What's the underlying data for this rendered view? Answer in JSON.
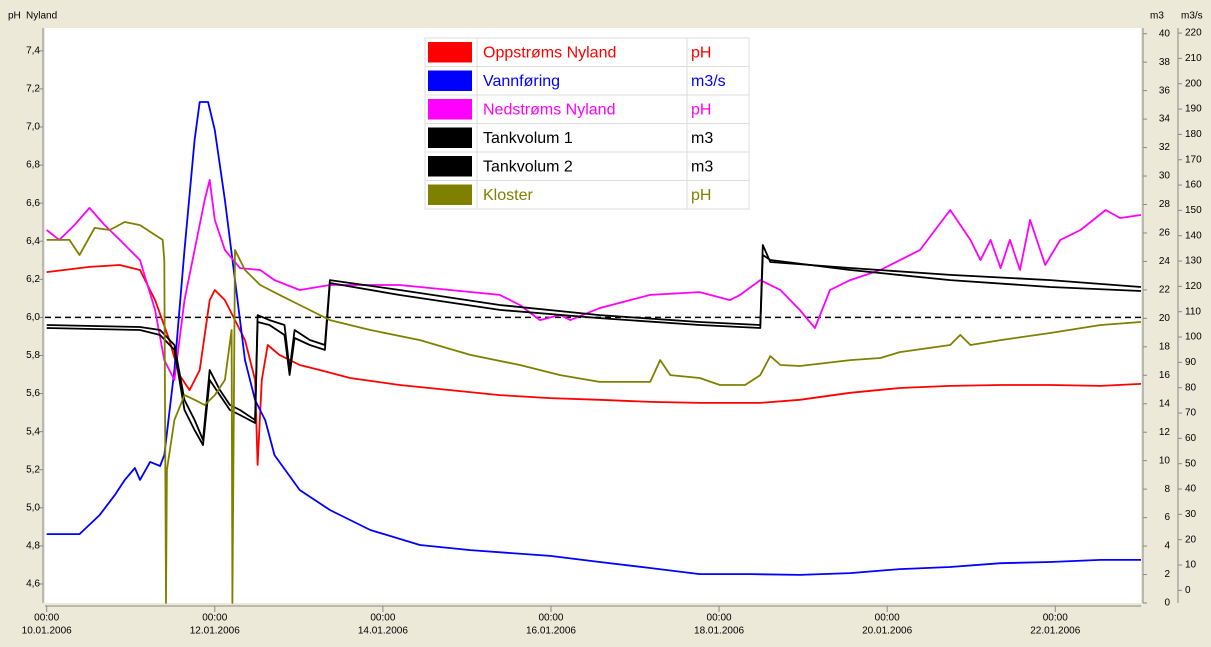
{
  "chart_data": {
    "type": "line",
    "title": "Nyland",
    "y_label": "pH",
    "y2_label": "m3",
    "y3_label": "m3/s",
    "xlim": [
      -0.02,
      13.02
    ],
    "xtick_time": "00:00",
    "xticks": [
      {
        "value": 0,
        "label": "10.01.2006"
      },
      {
        "value": 2,
        "label": "12.01.2006"
      },
      {
        "value": 4,
        "label": "14.01.2006"
      },
      {
        "value": 6,
        "label": "16.01.2006"
      },
      {
        "value": 8,
        "label": "18.01.2006"
      },
      {
        "value": 10,
        "label": "20.01.2006"
      },
      {
        "value": 12,
        "label": "22.01.2006"
      }
    ],
    "ylim": [
      4.5,
      7.52
    ],
    "yticks": [
      {
        "value": 4.6,
        "label": "4,6"
      },
      {
        "value": 4.8,
        "label": "4,8"
      },
      {
        "value": 5.0,
        "label": "5,0"
      },
      {
        "value": 5.2,
        "label": "5,2"
      },
      {
        "value": 5.4,
        "label": "5,4"
      },
      {
        "value": 5.6,
        "label": "5,6"
      },
      {
        "value": 5.8,
        "label": "5,8"
      },
      {
        "value": 6.0,
        "label": "6,0"
      },
      {
        "value": 6.2,
        "label": "6,2"
      },
      {
        "value": 6.4,
        "label": "6,4"
      },
      {
        "value": 6.6,
        "label": "6,6"
      },
      {
        "value": 6.8,
        "label": "6,8"
      },
      {
        "value": 7.0,
        "label": "7,0"
      },
      {
        "value": 7.2,
        "label": "7,2"
      },
      {
        "value": 7.4,
        "label": "7,4"
      }
    ],
    "y2lim": [
      0,
      40.4
    ],
    "y2ticks": [
      0,
      2,
      4,
      6,
      8,
      10,
      12,
      14,
      16,
      18,
      20,
      22,
      24,
      26,
      28,
      30,
      32,
      34,
      36,
      38,
      40
    ],
    "y3lim": [
      -5,
      222
    ],
    "y3ticks": [
      0,
      10,
      20,
      30,
      40,
      50,
      60,
      70,
      80,
      90,
      100,
      110,
      120,
      130,
      140,
      150,
      160,
      170,
      180,
      190,
      200,
      210,
      220
    ],
    "hline": 6.0,
    "series": [
      {
        "name": "Oppstrøms Nyland",
        "unit": "pH",
        "color": "#ff0000",
        "axis": "y",
        "x": [
          0,
          0.51,
          0.87,
          1.11,
          1.29,
          1.46,
          1.58,
          1.7,
          1.82,
          1.94,
          2.0,
          2.12,
          2.24,
          2.36,
          2.48,
          2.51,
          2.56,
          2.63,
          2.77,
          3.01,
          3.25,
          3.61,
          4.2,
          4.8,
          5.39,
          5.99,
          6.58,
          7.18,
          7.77,
          8.49,
          8.96,
          9.56,
          10.15,
          10.75,
          11.35,
          11.94,
          12.54,
          13.02
        ],
        "values": [
          6.238,
          6.265,
          6.275,
          6.249,
          6.091,
          5.881,
          5.697,
          5.618,
          5.724,
          6.091,
          6.144,
          6.091,
          5.986,
          5.881,
          5.671,
          5.225,
          5.671,
          5.855,
          5.803,
          5.75,
          5.724,
          5.682,
          5.645,
          5.618,
          5.592,
          5.576,
          5.567,
          5.556,
          5.551,
          5.551,
          5.567,
          5.604,
          5.629,
          5.64,
          5.645,
          5.645,
          5.64,
          5.651
        ]
      },
      {
        "name": "Vannføring",
        "unit": "m3/s",
        "color": "#0000ff",
        "axis": "y3",
        "x": [
          0,
          0.39,
          0.63,
          0.81,
          0.93,
          1.05,
          1.11,
          1.23,
          1.35,
          1.4,
          1.52,
          1.64,
          1.76,
          1.82,
          1.92,
          2.0,
          2.12,
          2.24,
          2.36,
          2.48,
          2.6,
          2.71,
          3.01,
          3.37,
          3.85,
          4.44,
          5.04,
          5.99,
          6.58,
          7.18,
          7.77,
          8.37,
          8.96,
          9.56,
          10.15,
          10.75,
          11.35,
          11.94,
          12.54,
          13.02
        ],
        "values": [
          22.2,
          22.2,
          29.7,
          37.6,
          43.6,
          48.3,
          43.6,
          50.7,
          49.1,
          53.4,
          87.0,
          134.4,
          177.8,
          192.8,
          192.8,
          181.7,
          154.1,
          122.5,
          90.9,
          75.1,
          67.2,
          53.4,
          39.6,
          31.7,
          23.8,
          17.9,
          15.9,
          13.6,
          11.2,
          8.8,
          6.4,
          6.4,
          6.1,
          6.8,
          8.4,
          9.2,
          10.7,
          11.2,
          12.0,
          12.0
        ]
      },
      {
        "name": "Nedstrøms Nyland",
        "unit": "pH",
        "color": "#ff00ff",
        "axis": "y",
        "x": [
          0,
          0.15,
          0.33,
          0.51,
          0.69,
          0.87,
          1.11,
          1.29,
          1.4,
          1.52,
          1.64,
          1.76,
          1.88,
          1.94,
          2.0,
          2.12,
          2.3,
          2.54,
          2.71,
          3.01,
          3.37,
          4.2,
          4.8,
          5.39,
          5.63,
          5.87,
          6.11,
          6.23,
          6.58,
          7.18,
          7.77,
          8.13,
          8.25,
          8.49,
          8.73,
          8.96,
          9.14,
          9.32,
          9.56,
          9.92,
          10.39,
          10.75,
          10.99,
          11.11,
          11.23,
          11.35,
          11.46,
          11.58,
          11.7,
          11.88,
          12.06,
          12.3,
          12.6,
          12.77,
          13.02
        ],
        "values": [
          6.459,
          6.407,
          6.485,
          6.575,
          6.485,
          6.407,
          6.301,
          6.039,
          5.776,
          5.671,
          6.091,
          6.354,
          6.617,
          6.722,
          6.512,
          6.354,
          6.259,
          6.249,
          6.196,
          6.144,
          6.17,
          6.17,
          6.144,
          6.118,
          6.065,
          5.986,
          6.013,
          5.986,
          6.049,
          6.118,
          6.133,
          6.091,
          6.118,
          6.196,
          6.144,
          6.039,
          5.944,
          6.144,
          6.196,
          6.249,
          6.354,
          6.564,
          6.407,
          6.301,
          6.407,
          6.259,
          6.407,
          6.249,
          6.512,
          6.275,
          6.407,
          6.459,
          6.564,
          6.522,
          6.538
        ]
      },
      {
        "name": "Tankvolum 1",
        "unit": "m3",
        "color": "#000000",
        "axis": "y2",
        "x": [
          0,
          1.11,
          1.35,
          1.52,
          1.64,
          1.76,
          1.86,
          1.94,
          2.06,
          2.18,
          2.3,
          2.48,
          2.51,
          2.65,
          2.83,
          2.89,
          2.95,
          3.13,
          3.31,
          3.37,
          4.2,
          5.39,
          6.58,
          7.77,
          8.49,
          8.52,
          8.61,
          9.56,
          10.75,
          11.94,
          13.02
        ],
        "values": [
          19.53,
          19.39,
          19.18,
          18.13,
          14.26,
          12.86,
          11.45,
          16.37,
          14.97,
          13.91,
          13.56,
          12.86,
          20.23,
          19.88,
          19.53,
          16.37,
          19.18,
          18.48,
          18.13,
          22.69,
          21.99,
          20.94,
          20.23,
          19.74,
          19.53,
          25.15,
          23.96,
          23.54,
          23.05,
          22.69,
          22.2
        ]
      },
      {
        "name": "Tankvolum 2",
        "unit": "m3",
        "color": "#000000",
        "axis": "y2",
        "x": [
          0,
          1.11,
          1.35,
          1.52,
          1.64,
          1.76,
          1.86,
          1.94,
          2.06,
          2.18,
          2.3,
          2.48,
          2.51,
          2.65,
          2.83,
          2.89,
          2.95,
          3.13,
          3.31,
          3.37,
          4.2,
          5.39,
          6.58,
          7.77,
          8.49,
          8.52,
          8.61,
          9.56,
          10.75,
          11.94,
          13.02
        ],
        "values": [
          19.32,
          19.18,
          18.83,
          17.78,
          13.56,
          12.15,
          11.1,
          15.67,
          14.61,
          13.56,
          13.21,
          12.65,
          19.74,
          19.53,
          18.83,
          16.02,
          18.62,
          18.13,
          17.78,
          22.48,
          21.64,
          20.59,
          20.02,
          19.53,
          19.32,
          24.45,
          24.1,
          23.4,
          22.69,
          22.2,
          21.92
        ]
      },
      {
        "name": "Kloster",
        "unit": "pH",
        "color": "#808000",
        "axis": "y",
        "x": [
          0,
          0.27,
          0.39,
          0.57,
          0.75,
          0.93,
          1.11,
          1.29,
          1.38,
          1.4,
          1.42,
          1.43,
          1.52,
          1.64,
          1.76,
          1.88,
          2.0,
          2.12,
          2.2,
          2.21,
          2.24,
          2.36,
          2.54,
          2.77,
          3.01,
          3.37,
          3.85,
          4.44,
          5.04,
          5.63,
          6.11,
          6.58,
          7.18,
          7.3,
          7.42,
          7.77,
          8.01,
          8.31,
          8.49,
          8.61,
          8.73,
          8.96,
          9.56,
          9.92,
          10.15,
          10.75,
          10.87,
          10.99,
          11.35,
          11.94,
          12.54,
          13.02
        ],
        "values": [
          6.407,
          6.407,
          6.328,
          6.47,
          6.459,
          6.501,
          6.485,
          6.433,
          6.407,
          6.301,
          4.5,
          5.199,
          5.461,
          5.592,
          5.567,
          5.54,
          5.592,
          5.671,
          5.934,
          4.5,
          6.354,
          6.249,
          6.17,
          6.118,
          6.065,
          5.986,
          5.934,
          5.881,
          5.803,
          5.75,
          5.697,
          5.661,
          5.661,
          5.776,
          5.697,
          5.682,
          5.645,
          5.645,
          5.697,
          5.797,
          5.75,
          5.745,
          5.776,
          5.787,
          5.818,
          5.855,
          5.908,
          5.855,
          5.881,
          5.918,
          5.96,
          5.976
        ]
      }
    ]
  }
}
